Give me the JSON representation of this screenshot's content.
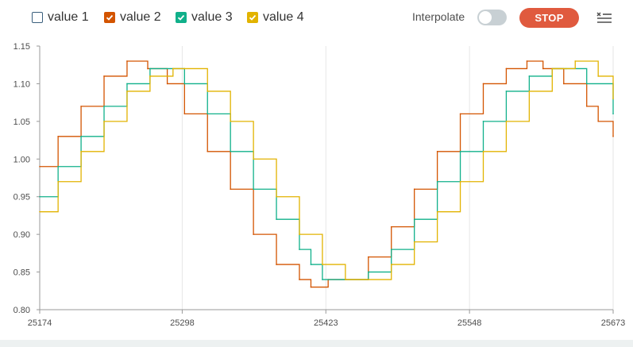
{
  "legend": [
    {
      "label": "value 1",
      "color": "#3a5f7d",
      "checked": false
    },
    {
      "label": "value 2",
      "color": "#d35400",
      "checked": true
    },
    {
      "label": "value 3",
      "color": "#10b08a",
      "checked": true
    },
    {
      "label": "value 4",
      "color": "#e2b300",
      "checked": true
    }
  ],
  "controls": {
    "interpolate_label": "Interpolate",
    "interpolate_on": false,
    "stop_label": "STOP",
    "menu_icon": "clear-list-icon"
  },
  "chart_data": {
    "type": "line",
    "xlim": [
      25174,
      25673
    ],
    "ylim": [
      0.8,
      1.15
    ],
    "x_ticks": [
      "25174",
      "25298",
      "25423",
      "25548",
      "25673"
    ],
    "y_ticks": [
      "1.15",
      "1.10",
      "1.05",
      "1.00",
      "0.95",
      "0.90",
      "0.85",
      "0.80"
    ],
    "grid": "vertical",
    "series": [
      {
        "name": "value 2",
        "color": "#d35400",
        "x": [
          25174,
          25190,
          25210,
          25230,
          25250,
          25268,
          25285,
          25300,
          25320,
          25340,
          25360,
          25380,
          25400,
          25410,
          25425,
          25440,
          25460,
          25480,
          25500,
          25520,
          25540,
          25560,
          25580,
          25598,
          25612,
          25630,
          25650,
          25660,
          25673
        ],
        "y": [
          0.99,
          1.03,
          1.07,
          1.11,
          1.13,
          1.12,
          1.1,
          1.06,
          1.01,
          0.96,
          0.9,
          0.86,
          0.84,
          0.83,
          0.84,
          0.84,
          0.87,
          0.91,
          0.96,
          1.01,
          1.06,
          1.1,
          1.12,
          1.13,
          1.12,
          1.1,
          1.07,
          1.05,
          1.03
        ]
      },
      {
        "name": "value 3",
        "color": "#10b08a",
        "x": [
          25174,
          25190,
          25210,
          25230,
          25250,
          25270,
          25290,
          25300,
          25320,
          25340,
          25360,
          25380,
          25400,
          25410,
          25420,
          25440,
          25460,
          25480,
          25500,
          25520,
          25540,
          25560,
          25580,
          25600,
          25620,
          25632,
          25650,
          25673
        ],
        "y": [
          0.95,
          0.99,
          1.03,
          1.07,
          1.1,
          1.12,
          1.12,
          1.1,
          1.06,
          1.01,
          0.96,
          0.92,
          0.88,
          0.86,
          0.84,
          0.84,
          0.85,
          0.88,
          0.92,
          0.97,
          1.01,
          1.05,
          1.09,
          1.11,
          1.12,
          1.12,
          1.1,
          1.06
        ]
      },
      {
        "name": "value 4",
        "color": "#e2b300",
        "x": [
          25174,
          25190,
          25210,
          25230,
          25250,
          25270,
          25290,
          25300,
          25320,
          25340,
          25360,
          25380,
          25400,
          25420,
          25440,
          25460,
          25480,
          25500,
          25520,
          25540,
          25560,
          25580,
          25600,
          25620,
          25640,
          25660,
          25673
        ],
        "y": [
          0.93,
          0.97,
          1.01,
          1.05,
          1.09,
          1.11,
          1.12,
          1.12,
          1.09,
          1.05,
          1.0,
          0.95,
          0.9,
          0.86,
          0.84,
          0.84,
          0.86,
          0.89,
          0.93,
          0.97,
          1.01,
          1.05,
          1.09,
          1.12,
          1.13,
          1.11,
          1.08
        ]
      }
    ]
  }
}
